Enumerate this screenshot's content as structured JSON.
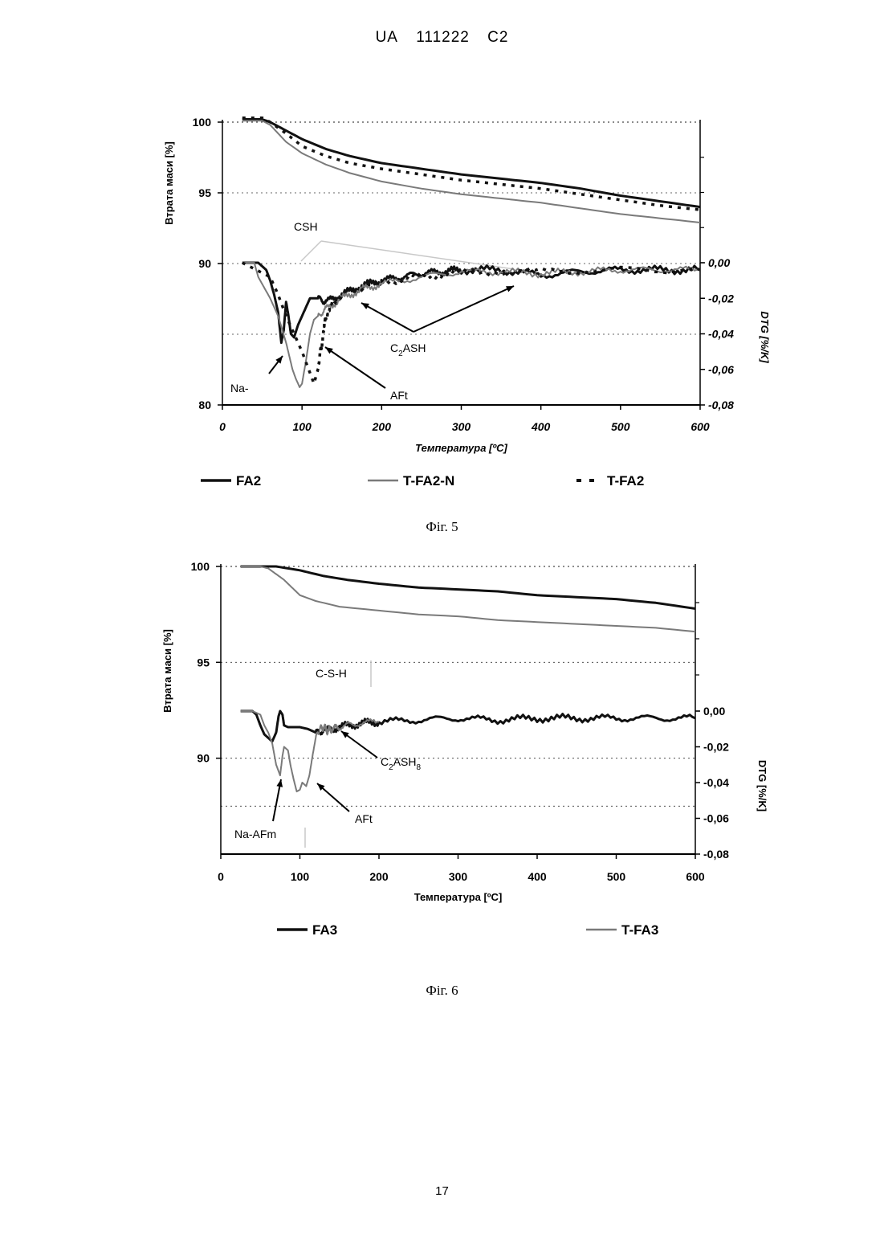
{
  "header": {
    "country": "UA",
    "number": "111222",
    "kind": "C2"
  },
  "page_number": "17",
  "colors": {
    "dark": "#111111",
    "grey": "#7a7a7a",
    "light": "#c8c8c8"
  },
  "chart_data": [
    {
      "id": "fig5",
      "caption": "Фіг. 5",
      "type": "line",
      "xlabel": "Температура [ºC]",
      "ylabel": "Втрата маси [%]",
      "y2label": "DTG [%/K]",
      "xlim": [
        0,
        600
      ],
      "ylim": [
        80,
        100
      ],
      "y2lim": [
        -0.08,
        0.0
      ],
      "x_ticks": [
        "0",
        "100",
        "200",
        "300",
        "400",
        "500",
        "600"
      ],
      "y_ticks": [
        "100",
        "95",
        "90",
        "80"
      ],
      "y2_ticks": [
        "0,00",
        "-0,02",
        "-0,04",
        "-0,06",
        "-0,08"
      ],
      "tick_italic": true,
      "legend": [
        {
          "name": "FA2",
          "style": "solid-dark"
        },
        {
          "name": "T-FA2-N",
          "style": "solid-grey"
        },
        {
          "name": "T-FA2",
          "style": "dashed-dark"
        }
      ],
      "annotations": [
        {
          "text": "CSH"
        },
        {
          "text": "C2ASH",
          "main": "C",
          "sub": "2",
          "rest": "ASH"
        },
        {
          "text": "Na-"
        },
        {
          "text": "AFt"
        }
      ],
      "series_tg": [
        {
          "name": "FA2",
          "style": "solid-dark",
          "x": [
            25,
            50,
            60,
            80,
            100,
            130,
            160,
            200,
            250,
            300,
            350,
            400,
            450,
            500,
            550,
            600
          ],
          "y": [
            100.2,
            100.2,
            100.0,
            99.4,
            98.8,
            98.1,
            97.6,
            97.1,
            96.7,
            96.3,
            96.0,
            95.7,
            95.3,
            94.8,
            94.4,
            94.0
          ]
        },
        {
          "name": "T-FA2-N",
          "style": "solid-grey",
          "x": [
            25,
            50,
            60,
            70,
            80,
            100,
            130,
            160,
            200,
            250,
            300,
            350,
            400,
            450,
            500,
            550,
            600
          ],
          "y": [
            100.1,
            100.1,
            99.8,
            99.2,
            98.6,
            97.8,
            97.0,
            96.4,
            95.8,
            95.3,
            94.9,
            94.6,
            94.3,
            93.9,
            93.5,
            93.2,
            92.9
          ]
        },
        {
          "name": "T-FA2",
          "style": "dashed-dark",
          "x": [
            25,
            50,
            60,
            80,
            100,
            130,
            160,
            200,
            250,
            300,
            350,
            400,
            450,
            500,
            550,
            600
          ],
          "y": [
            100.3,
            100.3,
            100.0,
            99.2,
            98.3,
            97.6,
            97.1,
            96.7,
            96.3,
            95.9,
            95.6,
            95.3,
            94.9,
            94.5,
            94.1,
            93.8
          ]
        }
      ],
      "series_dtg": [
        {
          "name": "FA2",
          "style": "solid-dark",
          "x": [
            25,
            45,
            55,
            60,
            65,
            70,
            74,
            77,
            80,
            83,
            86,
            90,
            95,
            100,
            105,
            110,
            120,
            130,
            150,
            175,
            200,
            225,
            250,
            275,
            300,
            350,
            400,
            450,
            500,
            550,
            600
          ],
          "y": [
            0.0,
            0.0,
            -0.004,
            -0.01,
            -0.018,
            -0.028,
            -0.045,
            -0.038,
            -0.022,
            -0.03,
            -0.04,
            -0.042,
            -0.035,
            -0.03,
            -0.025,
            -0.02,
            -0.02,
            -0.022,
            -0.018,
            -0.013,
            -0.01,
            -0.008,
            -0.006,
            -0.005,
            -0.004,
            -0.004,
            -0.007,
            -0.005,
            -0.004,
            -0.004,
            -0.004
          ]
        },
        {
          "name": "T-FA2-N",
          "style": "solid-grey",
          "x": [
            25,
            40,
            45,
            50,
            60,
            70,
            80,
            88,
            92,
            97,
            100,
            105,
            110,
            115,
            120,
            130,
            150,
            175,
            200,
            250,
            300,
            350,
            400,
            450,
            500,
            550,
            600
          ],
          "y": [
            0.0,
            0.0,
            -0.008,
            -0.012,
            -0.02,
            -0.03,
            -0.045,
            -0.06,
            -0.065,
            -0.07,
            -0.068,
            -0.055,
            -0.04,
            -0.032,
            -0.03,
            -0.026,
            -0.02,
            -0.015,
            -0.012,
            -0.008,
            -0.005,
            -0.005,
            -0.006,
            -0.005,
            -0.004,
            -0.004,
            -0.004
          ]
        },
        {
          "name": "T-FA2",
          "style": "dashed-dark",
          "x": [
            25,
            60,
            70,
            80,
            90,
            100,
            110,
            115,
            120,
            125,
            130,
            140,
            160,
            200,
            250,
            300,
            400,
            500,
            600
          ],
          "y": [
            0.0,
            -0.008,
            -0.018,
            -0.03,
            -0.04,
            -0.05,
            -0.062,
            -0.068,
            -0.06,
            -0.045,
            -0.03,
            -0.022,
            -0.016,
            -0.011,
            -0.007,
            -0.005,
            -0.005,
            -0.004,
            -0.004
          ]
        }
      ]
    },
    {
      "id": "fig6",
      "caption": "Фіг. 6",
      "type": "line",
      "xlabel": "Температура [ºC]",
      "ylabel": "Втрата маси [%]",
      "y2label": "DTG [%/K]",
      "xlim": [
        0,
        600
      ],
      "ylim": [
        85,
        100
      ],
      "y2lim": [
        -0.08,
        0.0
      ],
      "x_ticks": [
        "0",
        "100",
        "200",
        "300",
        "400",
        "500",
        "600"
      ],
      "y_ticks": [
        "100",
        "95",
        "90"
      ],
      "y2_ticks": [
        "0,00",
        "-0,02",
        "-0,04",
        "-0,06",
        "-0,08"
      ],
      "tick_italic": false,
      "legend": [
        {
          "name": "FA3",
          "style": "solid-dark"
        },
        {
          "name": "T-FA3",
          "style": "solid-grey"
        }
      ],
      "annotations": [
        {
          "text": "C-S-H"
        },
        {
          "text": "C2ASH8",
          "main": "C",
          "sub": "2",
          "rest": "ASH",
          "sub2": "8"
        },
        {
          "text": "Na-AFm"
        },
        {
          "text": "AFt"
        }
      ],
      "series_tg": [
        {
          "name": "FA3",
          "style": "solid-dark",
          "x": [
            25,
            50,
            70,
            100,
            130,
            160,
            200,
            250,
            300,
            350,
            400,
            450,
            500,
            550,
            600
          ],
          "y": [
            100.0,
            100.0,
            100.0,
            99.8,
            99.5,
            99.3,
            99.1,
            98.9,
            98.8,
            98.7,
            98.5,
            98.4,
            98.3,
            98.1,
            97.8
          ]
        },
        {
          "name": "T-FA3",
          "style": "solid-grey",
          "x": [
            25,
            50,
            60,
            70,
            80,
            90,
            100,
            120,
            150,
            200,
            250,
            300,
            350,
            400,
            450,
            500,
            550,
            600
          ],
          "y": [
            100.0,
            100.0,
            99.9,
            99.6,
            99.3,
            98.9,
            98.5,
            98.2,
            97.9,
            97.7,
            97.5,
            97.4,
            97.2,
            97.1,
            97.0,
            96.9,
            96.8,
            96.6
          ]
        }
      ],
      "series_dtg": [
        {
          "name": "FA3",
          "style": "solid-dark",
          "x": [
            25,
            40,
            45,
            50,
            55,
            60,
            65,
            70,
            73,
            75,
            78,
            80,
            85,
            90,
            100,
            110,
            120,
            130,
            150,
            175,
            200,
            250,
            300,
            350,
            400,
            450,
            500,
            550,
            600
          ],
          "y": [
            0.0,
            0.0,
            -0.002,
            -0.008,
            -0.013,
            -0.015,
            -0.017,
            -0.012,
            -0.003,
            0.0,
            -0.002,
            -0.008,
            -0.009,
            -0.009,
            -0.009,
            -0.01,
            -0.012,
            -0.011,
            -0.009,
            -0.007,
            -0.006,
            -0.005,
            -0.004,
            -0.005,
            -0.004,
            -0.004,
            -0.004,
            -0.004,
            -0.004
          ]
        },
        {
          "name": "T-FA3",
          "style": "solid-grey",
          "x": [
            25,
            40,
            50,
            55,
            60,
            65,
            70,
            75,
            78,
            80,
            85,
            88,
            92,
            96,
            100,
            103,
            108,
            112,
            116,
            120,
            125,
            130,
            135,
            140,
            150,
            170,
            200
          ],
          "y": [
            0.0,
            0.0,
            -0.002,
            -0.008,
            -0.012,
            -0.018,
            -0.03,
            -0.036,
            -0.025,
            -0.02,
            -0.022,
            -0.03,
            -0.038,
            -0.045,
            -0.044,
            -0.04,
            -0.042,
            -0.036,
            -0.025,
            -0.015,
            -0.01,
            -0.009,
            -0.011,
            -0.01,
            -0.009,
            -0.007,
            -0.006
          ]
        }
      ]
    }
  ]
}
